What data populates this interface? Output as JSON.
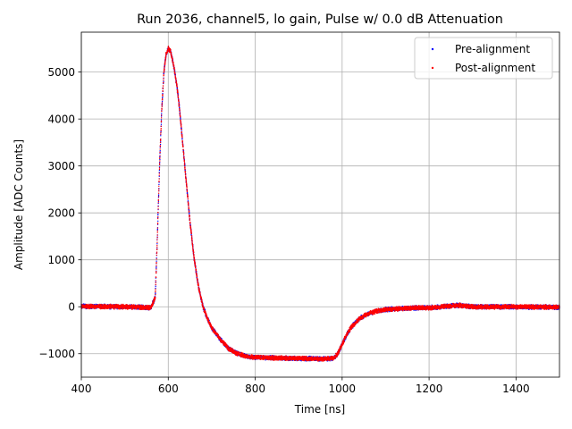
{
  "chart_data": {
    "type": "scatter",
    "title": "Run 2036, channel5, lo gain, Pulse w/ 0.0 dB Attenuation",
    "xlabel": "Time [ns]",
    "ylabel": "Amplitude [ADC Counts]",
    "xlim": [
      400,
      1500
    ],
    "ylim": [
      -1500,
      5850
    ],
    "xticks": [
      400,
      600,
      800,
      1000,
      1200,
      1400
    ],
    "yticks": [
      -1000,
      0,
      1000,
      2000,
      3000,
      4000,
      5000
    ],
    "xtick_labels": [
      "400",
      "600",
      "800",
      "1000",
      "1200",
      "1400"
    ],
    "ytick_labels": [
      "−1000",
      "0",
      "1000",
      "2000",
      "3000",
      "4000",
      "5000"
    ],
    "grid": true,
    "legend_position": "top-right",
    "series": [
      {
        "name": "Pre-alignment",
        "color": "#0000ff",
        "x": [
          400,
          500,
          560,
          570,
          575,
          580,
          585,
          590,
          595,
          600,
          605,
          610,
          615,
          620,
          625,
          630,
          640,
          650,
          660,
          670,
          680,
          690,
          700,
          720,
          740,
          760,
          780,
          800,
          850,
          900,
          950,
          980,
          990,
          1000,
          1010,
          1020,
          1040,
          1060,
          1080,
          1100,
          1150,
          1200,
          1270,
          1300,
          1400,
          1500
        ],
        "values": [
          10,
          0,
          -20,
          200,
          1500,
          3000,
          4200,
          5000,
          5380,
          5500,
          5450,
          5250,
          5000,
          4700,
          4300,
          3800,
          2800,
          1800,
          1000,
          400,
          0,
          -250,
          -450,
          -700,
          -900,
          -1000,
          -1060,
          -1080,
          -1090,
          -1100,
          -1110,
          -1100,
          -1000,
          -800,
          -600,
          -450,
          -250,
          -150,
          -90,
          -60,
          -30,
          -20,
          30,
          0,
          0,
          -10
        ]
      },
      {
        "name": "Post-alignment",
        "color": "#ff0000",
        "x": [
          400,
          500,
          560,
          570,
          575,
          580,
          585,
          590,
          595,
          600,
          605,
          610,
          615,
          620,
          625,
          630,
          640,
          650,
          660,
          670,
          680,
          690,
          700,
          720,
          740,
          760,
          780,
          800,
          850,
          900,
          950,
          980,
          990,
          1000,
          1010,
          1020,
          1040,
          1060,
          1080,
          1100,
          1150,
          1200,
          1270,
          1300,
          1400,
          1500
        ],
        "values": [
          10,
          0,
          -20,
          200,
          1500,
          3000,
          4200,
          5000,
          5380,
          5500,
          5450,
          5250,
          5000,
          4700,
          4300,
          3800,
          2800,
          1800,
          1000,
          400,
          0,
          -250,
          -450,
          -700,
          -900,
          -1000,
          -1060,
          -1080,
          -1090,
          -1100,
          -1110,
          -1100,
          -1000,
          -800,
          -600,
          -450,
          -250,
          -150,
          -90,
          -60,
          -30,
          -20,
          30,
          0,
          0,
          -10
        ]
      }
    ]
  }
}
